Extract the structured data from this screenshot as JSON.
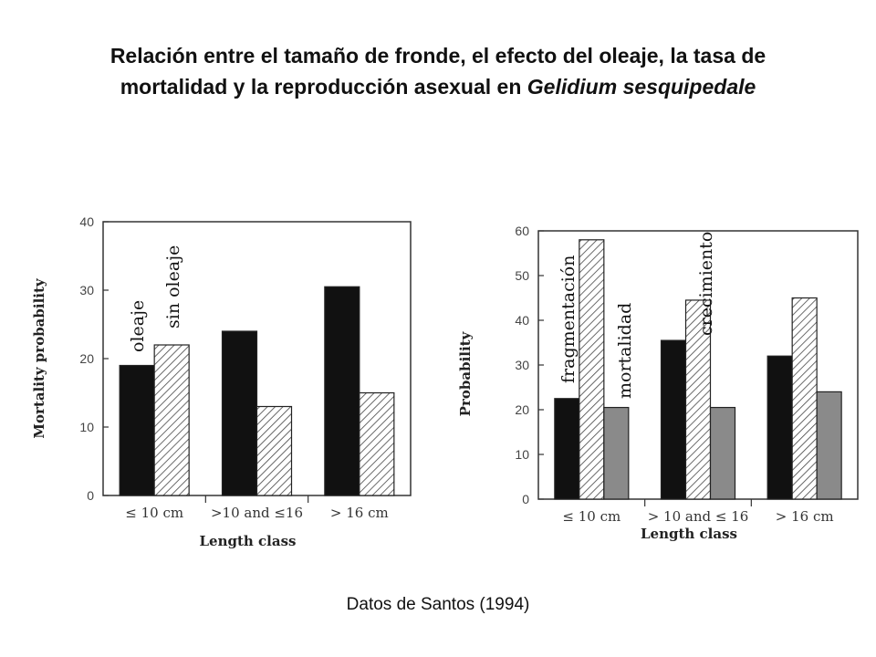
{
  "title": {
    "line1": "Relación entre el tamaño de fronde, el efecto del oleaje, la tasa de",
    "line2_plain": "mortalidad  y la reproducción asexual en ",
    "line2_italic": "Gelidium sesquipedale"
  },
  "caption": "Datos de Santos (1994)",
  "chart_data": [
    {
      "type": "bar",
      "xlabel": "Length class",
      "ylabel": "Mortality probability",
      "ylim": [
        0,
        40
      ],
      "yticks": [
        0,
        10,
        20,
        30,
        40
      ],
      "categories": [
        "≤ 10 cm",
        ">10 and ≤16",
        "> 16 cm"
      ],
      "series": [
        {
          "name": "oleaje",
          "values": [
            19,
            24,
            30.5
          ],
          "fill": "solid",
          "color": "#111111"
        },
        {
          "name": "sin oleaje",
          "values": [
            22,
            13,
            15
          ],
          "fill": "hatched",
          "color": "#555555"
        }
      ],
      "grid": false
    },
    {
      "type": "bar",
      "xlabel": "Length class",
      "ylabel": "Probability",
      "ylim": [
        0,
        60
      ],
      "yticks": [
        0,
        10,
        20,
        30,
        40,
        50,
        60
      ],
      "categories": [
        "≤ 10 cm",
        "> 10 and ≤ 16",
        "> 16 cm"
      ],
      "series": [
        {
          "name": "fragmentación",
          "values": [
            22.5,
            35.5,
            32
          ],
          "fill": "solid",
          "color": "#111111"
        },
        {
          "name": "crecimiento",
          "values": [
            58,
            44.5,
            45
          ],
          "fill": "hatched",
          "color": "#555555"
        },
        {
          "name": "mortalidad",
          "values": [
            20.5,
            20.5,
            24
          ],
          "fill": "gray",
          "color": "#8a8a8a"
        }
      ],
      "grid": false
    }
  ]
}
